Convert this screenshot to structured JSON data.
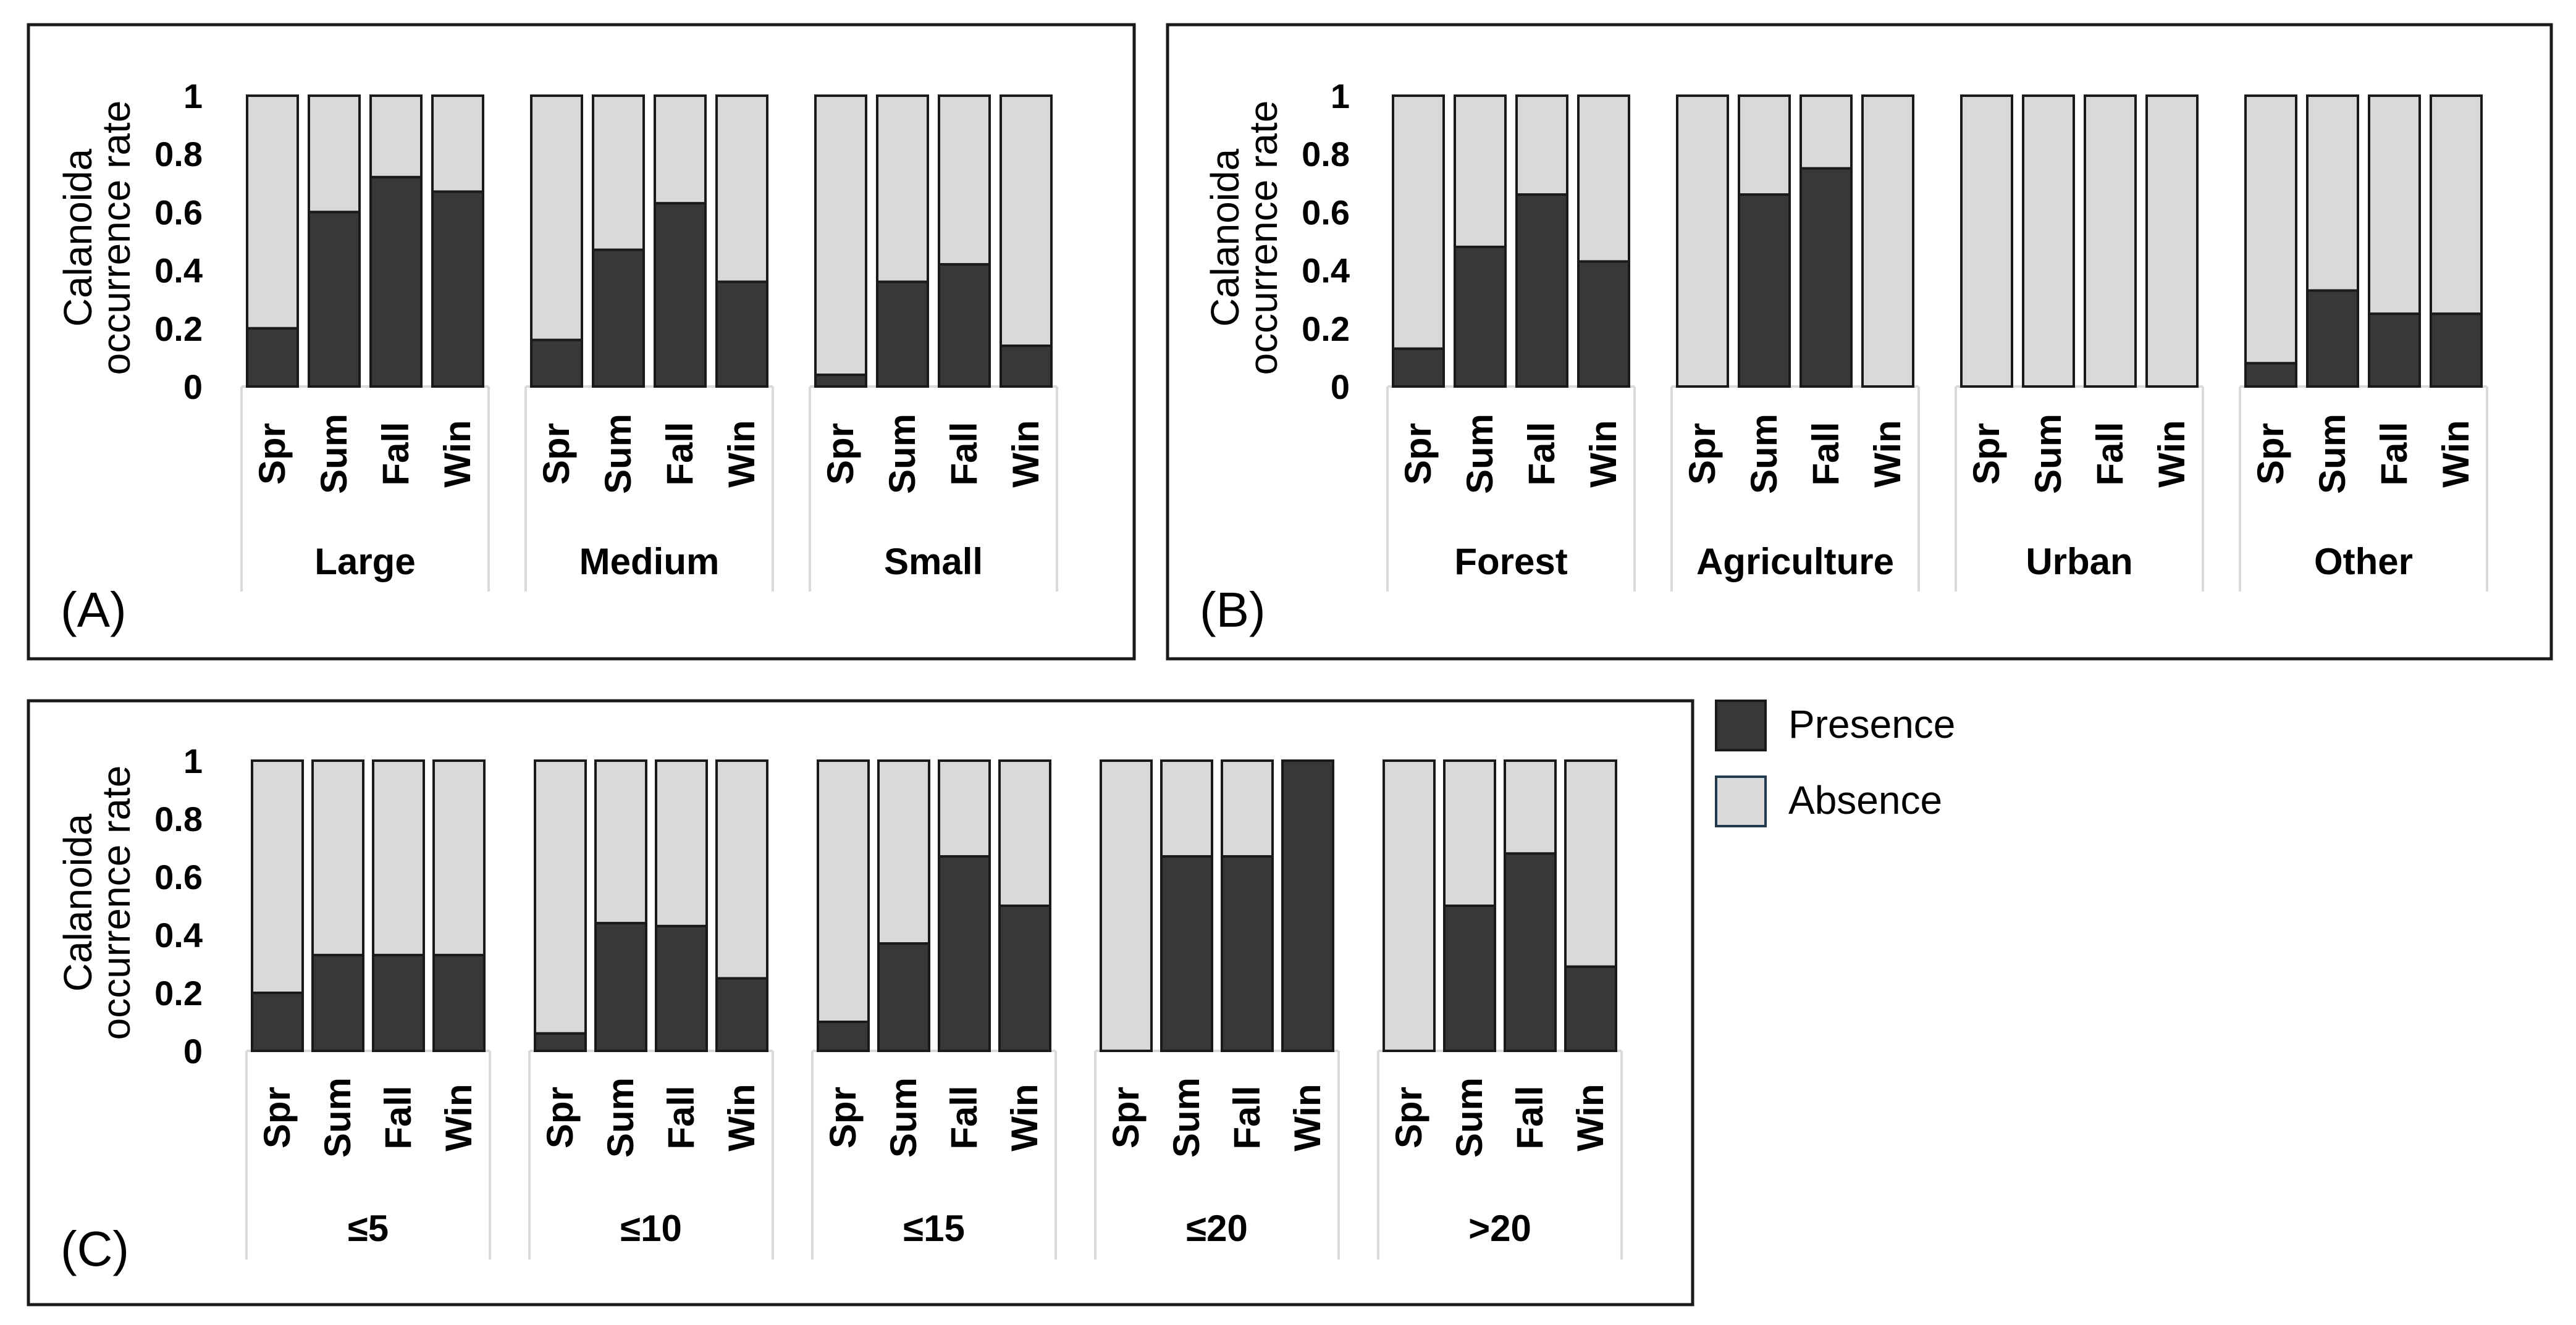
{
  "colors": {
    "presence": "#383838",
    "absence": "#d9d9d9",
    "outline": "#1a1a1a",
    "legend_absence_border": "#1f3b4d"
  },
  "legend": {
    "presence_label": "Presence",
    "absence_label": "Absence"
  },
  "chart_data": [
    {
      "panel": "(A)",
      "type": "bar",
      "stacked": true,
      "ylabel": "Calanoida occurrence rate",
      "ylim": [
        0,
        1
      ],
      "yticks": [
        "0",
        "0.2",
        "0.4",
        "0.6",
        "0.8",
        "1"
      ],
      "seasons": [
        "Spr",
        "Sum",
        "Fall",
        "Win"
      ],
      "groups": [
        {
          "name": "Large",
          "presence": [
            0.2,
            0.6,
            0.72,
            0.67
          ]
        },
        {
          "name": "Medium",
          "presence": [
            0.16,
            0.47,
            0.63,
            0.36
          ]
        },
        {
          "name": "Small",
          "presence": [
            0.04,
            0.36,
            0.42,
            0.14
          ]
        }
      ],
      "series": [
        {
          "name": "Presence"
        },
        {
          "name": "Absence"
        }
      ]
    },
    {
      "panel": "(B)",
      "type": "bar",
      "stacked": true,
      "ylabel": "Calanoida occurrence rate",
      "ylim": [
        0,
        1
      ],
      "yticks": [
        "0",
        "0.2",
        "0.4",
        "0.6",
        "0.8",
        "1"
      ],
      "seasons": [
        "Spr",
        "Sum",
        "Fall",
        "Win"
      ],
      "groups": [
        {
          "name": "Forest",
          "presence": [
            0.13,
            0.48,
            0.66,
            0.43
          ]
        },
        {
          "name": "Agriculture",
          "presence": [
            0.0,
            0.66,
            0.75,
            0.0
          ]
        },
        {
          "name": "Urban",
          "presence": [
            0.0,
            0.0,
            0.0,
            0.0
          ]
        },
        {
          "name": "Other",
          "presence": [
            0.08,
            0.33,
            0.25,
            0.25
          ]
        }
      ],
      "series": [
        {
          "name": "Presence"
        },
        {
          "name": "Absence"
        }
      ]
    },
    {
      "panel": "(C)",
      "type": "bar",
      "stacked": true,
      "ylabel": "Calanoida occurrence rate",
      "ylim": [
        0,
        1
      ],
      "yticks": [
        "0",
        "0.2",
        "0.4",
        "0.6",
        "0.8",
        "1"
      ],
      "seasons": [
        "Spr",
        "Sum",
        "Fall",
        "Win"
      ],
      "groups": [
        {
          "name": "≤5",
          "presence": [
            0.2,
            0.33,
            0.33,
            0.33
          ]
        },
        {
          "name": "≤10",
          "presence": [
            0.06,
            0.44,
            0.43,
            0.25
          ]
        },
        {
          "name": "≤15",
          "presence": [
            0.1,
            0.37,
            0.67,
            0.5
          ]
        },
        {
          "name": "≤20",
          "presence": [
            0.0,
            0.67,
            0.67,
            1.0
          ]
        },
        {
          "name": ">20",
          "presence": [
            0.0,
            0.5,
            0.68,
            0.29
          ]
        }
      ],
      "series": [
        {
          "name": "Presence"
        },
        {
          "name": "Absence"
        }
      ]
    }
  ]
}
